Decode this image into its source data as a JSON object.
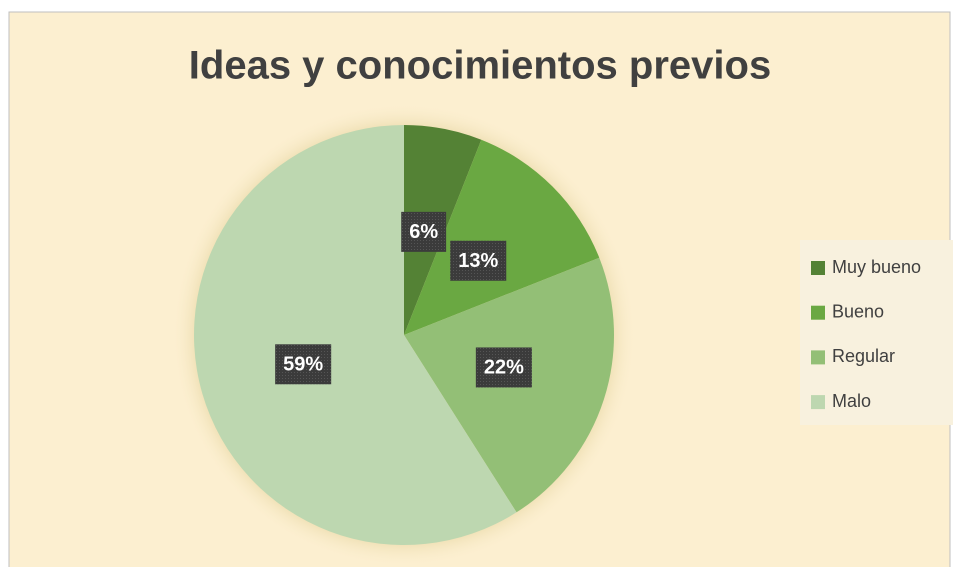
{
  "chart_data": {
    "type": "pie",
    "title": "Ideas y conocimientos previos",
    "categories": [
      "Muy bueno",
      "Bueno",
      "Regular",
      "Malo"
    ],
    "values": [
      6,
      13,
      22,
      59
    ],
    "value_labels": [
      "6%",
      "13%",
      "22%",
      "59%"
    ],
    "colors": [
      "#548235",
      "#6aa842",
      "#93bf76",
      "#bdd7b0"
    ],
    "legend": "right"
  }
}
